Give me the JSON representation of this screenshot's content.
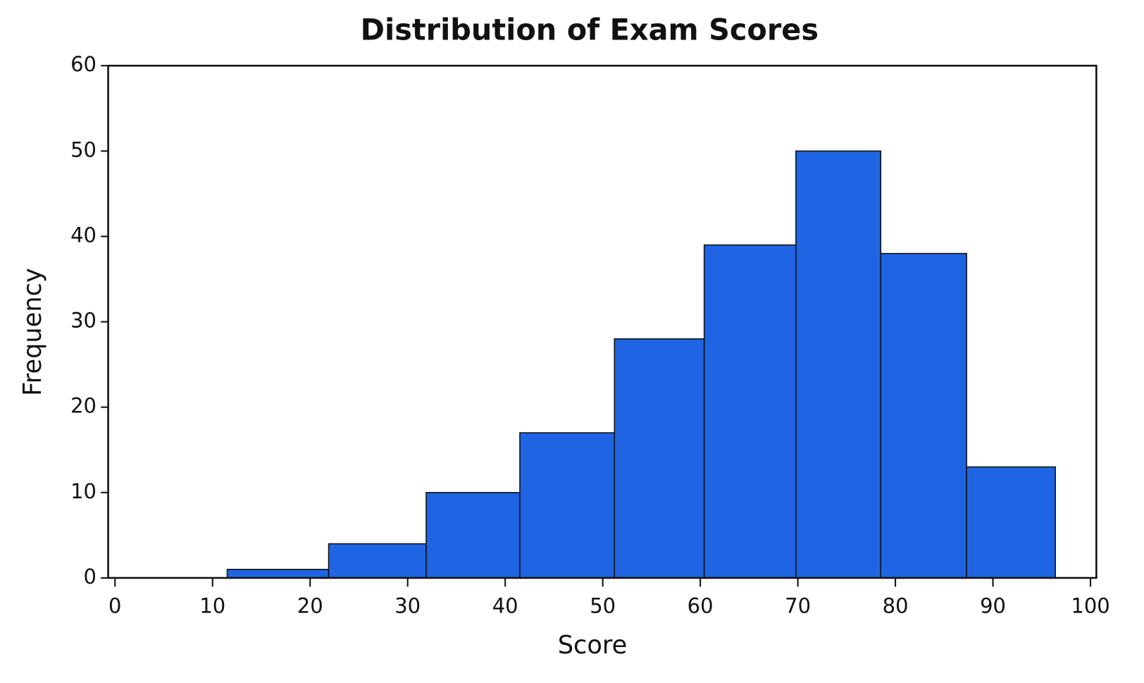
{
  "chart_data": {
    "type": "histogram",
    "title": "Distribution of Exam Scores",
    "x_label": "Score",
    "y_label": "Frequency",
    "bins": [
      11.5,
      21.9,
      31.9,
      41.5,
      51.2,
      60.4,
      69.8,
      78.5,
      87.3,
      96.4
    ],
    "values": [
      1,
      4,
      10,
      17,
      28,
      39,
      50,
      38,
      13
    ],
    "color": "#1f64e3",
    "xlim": [
      -0.7,
      100.6
    ],
    "xticks": [
      0,
      10,
      20,
      30,
      40,
      50,
      60,
      70,
      80,
      90,
      100
    ],
    "ylim": [
      0,
      60
    ],
    "yticks": [
      0,
      10,
      20,
      30,
      40,
      50,
      60
    ]
  }
}
